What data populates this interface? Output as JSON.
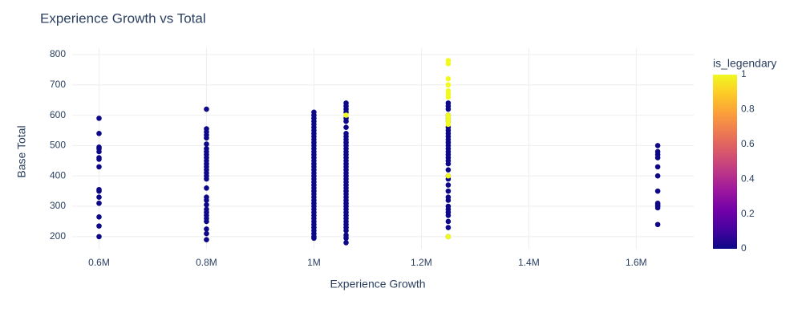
{
  "chart_data": {
    "type": "scatter",
    "title": "Experience Growth vs Total",
    "x_label": "Experience Growth",
    "y_label": "Base Total",
    "colorbar_title": "is_legendary",
    "x": [
      600000,
      600000,
      600000,
      600000,
      600000,
      600000,
      600000,
      600000,
      600000,
      600000,
      600000,
      600000,
      600000,
      600000,
      600000,
      800000,
      800000,
      800000,
      800000,
      800000,
      800000,
      800000,
      800000,
      800000,
      800000,
      800000,
      800000,
      800000,
      800000,
      800000,
      800000,
      800000,
      800000,
      800000,
      800000,
      800000,
      800000,
      800000,
      800000,
      800000,
      800000,
      800000,
      800000,
      800000,
      1000000,
      1000000,
      1000000,
      1000000,
      1000000,
      1000000,
      1000000,
      1000000,
      1000000,
      1000000,
      1000000,
      1000000,
      1000000,
      1000000,
      1000000,
      1000000,
      1000000,
      1000000,
      1000000,
      1000000,
      1000000,
      1000000,
      1000000,
      1000000,
      1000000,
      1000000,
      1000000,
      1000000,
      1000000,
      1000000,
      1000000,
      1000000,
      1000000,
      1000000,
      1000000,
      1000000,
      1000000,
      1000000,
      1000000,
      1000000,
      1000000,
      1000000,
      1000000,
      1059860,
      1059860,
      1059860,
      1059860,
      1059860,
      1059860,
      1059860,
      1059860,
      1059860,
      1059860,
      1059860,
      1059860,
      1059860,
      1059860,
      1059860,
      1059860,
      1059860,
      1059860,
      1059860,
      1059860,
      1059860,
      1059860,
      1059860,
      1059860,
      1059860,
      1059860,
      1059860,
      1059860,
      1059860,
      1059860,
      1059860,
      1059860,
      1059860,
      1059860,
      1059860,
      1059860,
      1059860,
      1059860,
      1059860,
      1059860,
      1059860,
      1059860,
      1059860,
      1059860,
      1250000,
      1250000,
      1250000,
      1250000,
      1250000,
      1250000,
      1250000,
      1250000,
      1250000,
      1250000,
      1250000,
      1250000,
      1250000,
      1250000,
      1250000,
      1250000,
      1250000,
      1250000,
      1250000,
      1250000,
      1250000,
      1250000,
      1250000,
      1250000,
      1250000,
      1250000,
      1250000,
      1250000,
      1250000,
      1250000,
      1250000,
      1250000,
      1250000,
      1250000,
      1250000,
      1250000,
      1250000,
      1250000,
      1250000,
      1250000,
      1250000,
      1250000,
      1250000,
      1250000,
      1250000,
      1250000,
      1640000,
      1640000,
      1640000,
      1640000,
      1640000,
      1640000,
      1640000,
      1640000,
      1640000,
      1640000,
      1640000,
      1640000
    ],
    "values": [
      590,
      540,
      495,
      490,
      480,
      460,
      455,
      430,
      355,
      350,
      330,
      310,
      265,
      235,
      200,
      620,
      555,
      545,
      535,
      525,
      505,
      490,
      480,
      470,
      460,
      450,
      440,
      430,
      420,
      410,
      400,
      390,
      360,
      330,
      320,
      305,
      290,
      280,
      270,
      260,
      250,
      225,
      210,
      190,
      610,
      600,
      590,
      580,
      570,
      560,
      550,
      540,
      530,
      520,
      510,
      500,
      490,
      480,
      470,
      460,
      450,
      440,
      430,
      420,
      410,
      400,
      390,
      380,
      370,
      360,
      350,
      340,
      330,
      320,
      310,
      300,
      290,
      280,
      270,
      260,
      250,
      240,
      230,
      220,
      210,
      200,
      195,
      640,
      630,
      620,
      610,
      590,
      580,
      560,
      540,
      530,
      520,
      510,
      500,
      490,
      480,
      470,
      460,
      450,
      440,
      430,
      420,
      410,
      400,
      390,
      380,
      370,
      360,
      350,
      340,
      330,
      320,
      310,
      300,
      290,
      280,
      270,
      260,
      250,
      240,
      230,
      220,
      205,
      195,
      180,
      600,
      640,
      630,
      620,
      600,
      590,
      580,
      560,
      550,
      540,
      530,
      520,
      510,
      500,
      490,
      480,
      470,
      460,
      450,
      440,
      420,
      400,
      390,
      370,
      350,
      330,
      320,
      300,
      290,
      280,
      270,
      250,
      230,
      200,
      780,
      770,
      720,
      700,
      680,
      670,
      660,
      600,
      590,
      580,
      570,
      400,
      200,
      500,
      480,
      470,
      460,
      430,
      400,
      350,
      310,
      305,
      300,
      295,
      240
    ],
    "color_values": [
      0,
      0,
      0,
      0,
      0,
      0,
      0,
      0,
      0,
      0,
      0,
      0,
      0,
      0,
      0,
      0,
      0,
      0,
      0,
      0,
      0,
      0,
      0,
      0,
      0,
      0,
      0,
      0,
      0,
      0,
      0,
      0,
      0,
      0,
      0,
      0,
      0,
      0,
      0,
      0,
      0,
      0,
      0,
      0,
      0,
      0,
      0,
      0,
      0,
      0,
      0,
      0,
      0,
      0,
      0,
      0,
      0,
      0,
      0,
      0,
      0,
      0,
      0,
      0,
      0,
      0,
      0,
      0,
      0,
      0,
      0,
      0,
      0,
      0,
      0,
      0,
      0,
      0,
      0,
      0,
      0,
      0,
      0,
      0,
      0,
      0,
      0,
      0,
      0,
      0,
      0,
      0,
      0,
      0,
      0,
      0,
      0,
      0,
      0,
      0,
      0,
      0,
      0,
      0,
      0,
      0,
      0,
      0,
      0,
      0,
      0,
      0,
      0,
      0,
      0,
      0,
      0,
      0,
      0,
      0,
      0,
      0,
      0,
      0,
      0,
      0,
      0,
      0,
      0,
      0,
      1,
      0,
      0,
      0,
      0,
      0,
      0,
      0,
      0,
      0,
      0,
      0,
      0,
      0,
      0,
      0,
      0,
      0,
      0,
      0,
      0,
      0,
      0,
      0,
      0,
      0,
      0,
      0,
      0,
      0,
      0,
      0,
      0,
      0,
      1,
      1,
      1,
      1,
      1,
      1,
      1,
      1,
      1,
      1,
      1,
      1,
      1,
      0,
      0,
      0,
      0,
      0,
      0,
      0,
      0,
      0,
      0,
      0,
      0
    ],
    "colorscale": [
      "#0d0887",
      "#46039f",
      "#7201a8",
      "#9c179e",
      "#bd3786",
      "#d8576b",
      "#ed7953",
      "#fb9f3a",
      "#fdca26",
      "#f0f921"
    ],
    "clim": [
      0,
      1
    ],
    "cticks": [
      0,
      0.2,
      0.4,
      0.6,
      0.8,
      1
    ],
    "xlim": [
      550000,
      1707000
    ],
    "xticks": [
      {
        "value": 600000,
        "label": "0.6M"
      },
      {
        "value": 800000,
        "label": "0.8M"
      },
      {
        "value": 1000000,
        "label": "1M"
      },
      {
        "value": 1200000,
        "label": "1.2M"
      },
      {
        "value": 1400000,
        "label": "1.4M"
      },
      {
        "value": 1600000,
        "label": "1.6M"
      }
    ],
    "ylim": [
      160,
      821
    ],
    "yticks": [
      200,
      300,
      400,
      500,
      600,
      700,
      800
    ],
    "grid": true
  }
}
